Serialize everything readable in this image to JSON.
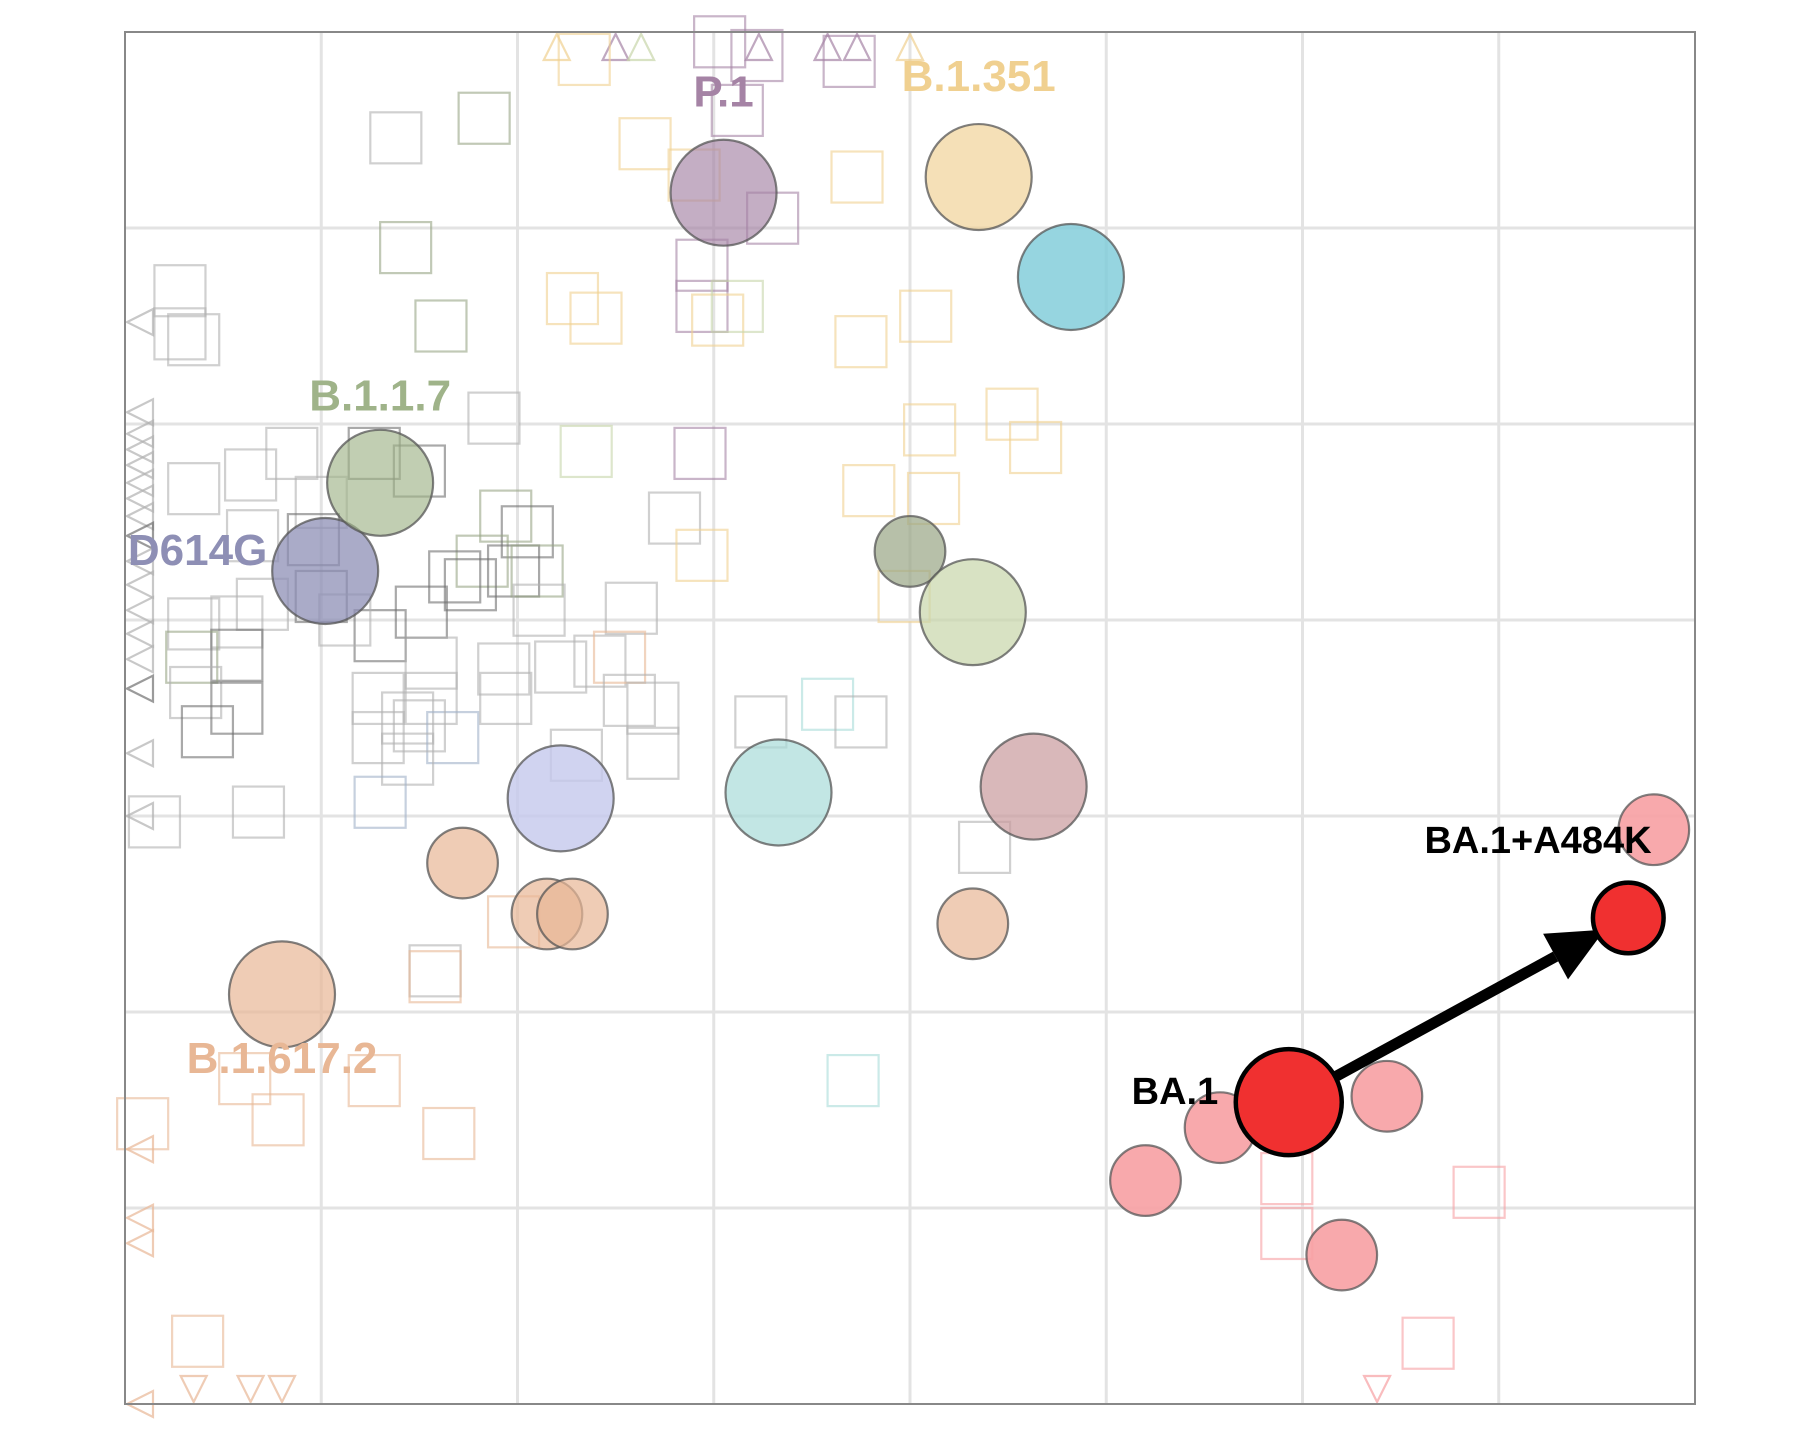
{
  "chart_data": {
    "type": "scatter",
    "title": "",
    "xlabel": "",
    "ylabel": "",
    "xlim": [
      0,
      8
    ],
    "ylim": [
      0,
      7
    ],
    "grid": true,
    "legend": "none",
    "colors": {
      "D614G": "#8e8fb5",
      "B.1.1.7": "#9fb389",
      "P.1": "#a583a5",
      "B.1.351": "#f0d090",
      "B.1.617.2": "#e8b795",
      "BA.1": "#f03030",
      "BA.1_related": "#f7a0a3",
      "other_teal": "#7ccbd8",
      "other_cyan": "#a8dcd8",
      "other_lavender": "#c4c8ec",
      "other_rose": "#c99a9d",
      "other_olive": "#c7d6aa",
      "other_darkolive": "#98a585",
      "grey": "#b0b0b0"
    },
    "variant_labels": [
      {
        "text": "D614G",
        "x": 0.37,
        "y": 4.28,
        "color": "#8e8fb5"
      },
      {
        "text": "B.1.1.7",
        "x": 1.3,
        "y": 5.07,
        "color": "#9fb389"
      },
      {
        "text": "P.1",
        "x": 3.05,
        "y": 6.62,
        "color": "#a583a5"
      },
      {
        "text": "B.1.351",
        "x": 4.35,
        "y": 6.7,
        "color": "#f0d090"
      },
      {
        "text": "B.1.617.2",
        "x": 0.8,
        "y": 1.69,
        "color": "#e8b795"
      }
    ],
    "focus_labels": [
      {
        "text": "BA.1",
        "x": 5.35,
        "y": 1.53
      },
      {
        "text": "BA.1+A484K",
        "x": 7.2,
        "y": 2.81
      }
    ],
    "arrow": {
      "from": [
        5.93,
        1.54
      ],
      "to": [
        7.54,
        2.42
      ]
    },
    "antigens": [
      {
        "x": 1.02,
        "y": 4.25,
        "r": 0.27,
        "color": "#8e8fb5",
        "opacity": 0.75
      },
      {
        "x": 1.3,
        "y": 4.7,
        "r": 0.27,
        "color": "#9fb389",
        "opacity": 0.65
      },
      {
        "x": 3.05,
        "y": 6.18,
        "r": 0.27,
        "color": "#a583a5",
        "opacity": 0.65
      },
      {
        "x": 4.35,
        "y": 6.26,
        "r": 0.27,
        "color": "#f0d090",
        "opacity": 0.65
      },
      {
        "x": 4.82,
        "y": 5.75,
        "r": 0.27,
        "color": "#7ccbd8",
        "opacity": 0.8
      },
      {
        "x": 4.0,
        "y": 4.35,
        "r": 0.18,
        "color": "#98a585",
        "opacity": 0.7
      },
      {
        "x": 4.32,
        "y": 4.04,
        "r": 0.27,
        "color": "#c7d6aa",
        "opacity": 0.7
      },
      {
        "x": 2.22,
        "y": 3.09,
        "r": 0.27,
        "color": "#c4c8ec",
        "opacity": 0.8
      },
      {
        "x": 3.33,
        "y": 3.12,
        "r": 0.27,
        "color": "#a8dcd8",
        "opacity": 0.7
      },
      {
        "x": 4.63,
        "y": 3.15,
        "r": 0.27,
        "color": "#c99a9d",
        "opacity": 0.7
      },
      {
        "x": 1.72,
        "y": 2.76,
        "r": 0.18,
        "color": "#e8b795",
        "opacity": 0.7
      },
      {
        "x": 2.15,
        "y": 2.5,
        "r": 0.18,
        "color": "#e8b795",
        "opacity": 0.7
      },
      {
        "x": 2.28,
        "y": 2.5,
        "r": 0.18,
        "color": "#e8b795",
        "opacity": 0.7
      },
      {
        "x": 4.32,
        "y": 2.45,
        "r": 0.18,
        "color": "#e8b795",
        "opacity": 0.7
      },
      {
        "x": 0.8,
        "y": 2.09,
        "r": 0.27,
        "color": "#e8b795",
        "opacity": 0.7
      },
      {
        "x": 7.79,
        "y": 2.93,
        "r": 0.18,
        "color": "#f7a0a3",
        "opacity": 0.9
      },
      {
        "x": 6.43,
        "y": 1.57,
        "r": 0.18,
        "color": "#f7a0a3",
        "opacity": 0.9
      },
      {
        "x": 5.58,
        "y": 1.41,
        "r": 0.18,
        "color": "#f7a0a3",
        "opacity": 0.9
      },
      {
        "x": 5.2,
        "y": 1.14,
        "r": 0.18,
        "color": "#f7a0a3",
        "opacity": 0.9
      },
      {
        "x": 6.2,
        "y": 0.76,
        "r": 0.18,
        "color": "#f7a0a3",
        "opacity": 0.9
      }
    ],
    "focus_antigens": [
      {
        "x": 5.93,
        "y": 1.54,
        "r": 0.27,
        "color": "#f03030"
      },
      {
        "x": 7.66,
        "y": 2.48,
        "r": 0.18,
        "color": "#f03030"
      }
    ],
    "sera": [
      {
        "x": 1.38,
        "y": 6.46,
        "color": "#b0b0b0"
      },
      {
        "x": 1.83,
        "y": 6.56,
        "color": "#98a585"
      },
      {
        "x": 1.43,
        "y": 5.9,
        "color": "#98a585"
      },
      {
        "x": 1.61,
        "y": 5.5,
        "color": "#98a585"
      },
      {
        "x": 0.28,
        "y": 5.68,
        "color": "#b0b0b0"
      },
      {
        "x": 0.35,
        "y": 5.43,
        "color": "#b0b0b0"
      },
      {
        "x": 2.34,
        "y": 6.86,
        "color": "#f0d090"
      },
      {
        "x": 3.03,
        "y": 6.95,
        "color": "#a583a5"
      },
      {
        "x": 3.22,
        "y": 6.88,
        "color": "#a583a5"
      },
      {
        "x": 3.69,
        "y": 6.85,
        "color": "#a583a5"
      },
      {
        "x": 3.12,
        "y": 6.6,
        "color": "#a583a5"
      },
      {
        "x": 2.65,
        "y": 6.43,
        "color": "#f0d090"
      },
      {
        "x": 2.9,
        "y": 6.27,
        "color": "#f0d090"
      },
      {
        "x": 3.3,
        "y": 6.05,
        "color": "#a583a5"
      },
      {
        "x": 3.73,
        "y": 6.26,
        "color": "#f0d090"
      },
      {
        "x": 2.94,
        "y": 5.81,
        "color": "#a583a5"
      },
      {
        "x": 2.94,
        "y": 5.6,
        "color": "#a583a5"
      },
      {
        "x": 3.02,
        "y": 5.53,
        "color": "#f0d090"
      },
      {
        "x": 3.12,
        "y": 5.6,
        "color": "#c7d6aa"
      },
      {
        "x": 2.28,
        "y": 5.64,
        "color": "#f0d090"
      },
      {
        "x": 2.4,
        "y": 5.54,
        "color": "#f0d090"
      },
      {
        "x": 3.75,
        "y": 5.42,
        "color": "#f0d090"
      },
      {
        "x": 4.08,
        "y": 5.55,
        "color": "#f0d090"
      },
      {
        "x": 4.1,
        "y": 4.97,
        "color": "#f0d090"
      },
      {
        "x": 4.52,
        "y": 5.05,
        "color": "#f0d090"
      },
      {
        "x": 4.64,
        "y": 4.88,
        "color": "#f0d090"
      },
      {
        "x": 3.79,
        "y": 4.66,
        "color": "#f0d090"
      },
      {
        "x": 4.12,
        "y": 4.62,
        "color": "#f0d090"
      },
      {
        "x": 3.97,
        "y": 4.12,
        "color": "#f0d090"
      },
      {
        "x": 2.93,
        "y": 4.85,
        "color": "#a583a5"
      },
      {
        "x": 2.35,
        "y": 4.86,
        "color": "#c7d6aa"
      },
      {
        "x": 2.8,
        "y": 4.52,
        "color": "#b0b0b0"
      },
      {
        "x": 2.94,
        "y": 4.33,
        "color": "#f0d090"
      },
      {
        "x": 0.85,
        "y": 4.85,
        "color": "#b0b0b0"
      },
      {
        "x": 1.27,
        "y": 4.85,
        "color": "#707070"
      },
      {
        "x": 1.5,
        "y": 4.76,
        "color": "#707070"
      },
      {
        "x": 1.88,
        "y": 5.03,
        "color": "#b0b0b0"
      },
      {
        "x": 0.35,
        "y": 4.67,
        "color": "#b0b0b0"
      },
      {
        "x": 0.64,
        "y": 4.74,
        "color": "#b0b0b0"
      },
      {
        "x": 1.0,
        "y": 4.6,
        "color": "#b0b0b0"
      },
      {
        "x": 0.65,
        "y": 4.43,
        "color": "#b0b0b0"
      },
      {
        "x": 0.96,
        "y": 4.41,
        "color": "#707070"
      },
      {
        "x": 1.94,
        "y": 4.53,
        "color": "#98a585"
      },
      {
        "x": 2.05,
        "y": 4.45,
        "color": "#707070"
      },
      {
        "x": 1.82,
        "y": 4.3,
        "color": "#98a585"
      },
      {
        "x": 1.98,
        "y": 4.25,
        "color": "#707070"
      },
      {
        "x": 2.1,
        "y": 4.25,
        "color": "#98a585"
      },
      {
        "x": 1.68,
        "y": 4.22,
        "color": "#707070"
      },
      {
        "x": 1.76,
        "y": 4.18,
        "color": "#707070"
      },
      {
        "x": 1.51,
        "y": 4.04,
        "color": "#707070"
      },
      {
        "x": 1.3,
        "y": 3.92,
        "color": "#707070"
      },
      {
        "x": 1.0,
        "y": 4.12,
        "color": "#707070"
      },
      {
        "x": 1.12,
        "y": 4.0,
        "color": "#b0b0b0"
      },
      {
        "x": 0.7,
        "y": 4.08,
        "color": "#b0b0b0"
      },
      {
        "x": 0.57,
        "y": 3.99,
        "color": "#b0b0b0"
      },
      {
        "x": 0.35,
        "y": 3.98,
        "color": "#b0b0b0"
      },
      {
        "x": 0.57,
        "y": 3.82,
        "color": "#707070"
      },
      {
        "x": 0.34,
        "y": 3.81,
        "color": "#98a585"
      },
      {
        "x": 0.36,
        "y": 3.63,
        "color": "#b0b0b0"
      },
      {
        "x": 0.57,
        "y": 3.55,
        "color": "#707070"
      },
      {
        "x": 0.42,
        "y": 3.43,
        "color": "#707070"
      },
      {
        "x": 1.56,
        "y": 3.6,
        "color": "#b0b0b0"
      },
      {
        "x": 1.29,
        "y": 3.6,
        "color": "#b0b0b0"
      },
      {
        "x": 1.44,
        "y": 3.5,
        "color": "#b0b0b0"
      },
      {
        "x": 1.56,
        "y": 3.78,
        "color": "#b0b0b0"
      },
      {
        "x": 1.67,
        "y": 3.4,
        "color": "#a0b0c8"
      },
      {
        "x": 1.5,
        "y": 3.46,
        "color": "#b0b0b0"
      },
      {
        "x": 1.29,
        "y": 3.4,
        "color": "#b0b0b0"
      },
      {
        "x": 1.44,
        "y": 3.29,
        "color": "#b0b0b0"
      },
      {
        "x": 1.3,
        "y": 3.07,
        "color": "#a0b0c8"
      },
      {
        "x": 1.93,
        "y": 3.75,
        "color": "#b0b0b0"
      },
      {
        "x": 1.94,
        "y": 3.6,
        "color": "#b0b0b0"
      },
      {
        "x": 2.11,
        "y": 4.05,
        "color": "#b0b0b0"
      },
      {
        "x": 2.22,
        "y": 3.76,
        "color": "#b0b0b0"
      },
      {
        "x": 2.58,
        "y": 4.06,
        "color": "#b0b0b0"
      },
      {
        "x": 2.42,
        "y": 3.79,
        "color": "#b0b0b0"
      },
      {
        "x": 2.52,
        "y": 3.81,
        "color": "#e8b795"
      },
      {
        "x": 2.57,
        "y": 3.59,
        "color": "#b0b0b0"
      },
      {
        "x": 2.69,
        "y": 3.55,
        "color": "#b0b0b0"
      },
      {
        "x": 2.3,
        "y": 3.31,
        "color": "#b0b0b0"
      },
      {
        "x": 2.69,
        "y": 3.32,
        "color": "#b0b0b0"
      },
      {
        "x": 3.24,
        "y": 3.48,
        "color": "#b0b0b0"
      },
      {
        "x": 3.58,
        "y": 3.57,
        "color": "#a8dcd8"
      },
      {
        "x": 3.75,
        "y": 3.48,
        "color": "#b0b0b0"
      },
      {
        "x": 0.15,
        "y": 2.97,
        "color": "#b0b0b0"
      },
      {
        "x": 0.68,
        "y": 3.02,
        "color": "#b0b0b0"
      },
      {
        "x": 4.38,
        "y": 2.84,
        "color": "#b0b0b0"
      },
      {
        "x": 1.98,
        "y": 2.46,
        "color": "#e8b795"
      },
      {
        "x": 1.58,
        "y": 2.21,
        "color": "#b0b0b0"
      },
      {
        "x": 1.58,
        "y": 2.18,
        "color": "#e8b795"
      },
      {
        "x": 0.61,
        "y": 1.66,
        "color": "#e8b795"
      },
      {
        "x": 1.27,
        "y": 1.65,
        "color": "#e8b795"
      },
      {
        "x": 0.78,
        "y": 1.45,
        "color": "#e8b795"
      },
      {
        "x": 1.65,
        "y": 1.38,
        "color": "#e8b795"
      },
      {
        "x": 0.09,
        "y": 1.43,
        "color": "#e8b795"
      },
      {
        "x": 3.71,
        "y": 1.65,
        "color": "#a8dcd8"
      },
      {
        "x": 0.37,
        "y": 0.32,
        "color": "#e8b795"
      },
      {
        "x": 5.92,
        "y": 1.15,
        "color": "#f7a0a3"
      },
      {
        "x": 6.9,
        "y": 1.08,
        "color": "#f7a0a3"
      },
      {
        "x": 5.92,
        "y": 0.87,
        "color": "#f7a0a3"
      },
      {
        "x": 6.64,
        "y": 0.31,
        "color": "#f7a0a3"
      },
      {
        "x": 0.28,
        "y": 5.46,
        "color": "#b0b0b0"
      }
    ],
    "markers_left": [
      {
        "y": 5.52,
        "color": "#b0b0b0"
      },
      {
        "y": 5.06,
        "color": "#b0b0b0"
      },
      {
        "y": 4.95,
        "color": "#b0b0b0"
      },
      {
        "y": 4.87,
        "color": "#b0b0b0"
      },
      {
        "y": 4.79,
        "color": "#b0b0b0"
      },
      {
        "y": 4.7,
        "color": "#b0b0b0"
      },
      {
        "y": 4.62,
        "color": "#b0b0b0"
      },
      {
        "y": 4.53,
        "color": "#b0b0b0"
      },
      {
        "y": 4.43,
        "color": "#707070"
      },
      {
        "y": 4.3,
        "color": "#b0b0b0"
      },
      {
        "y": 4.18,
        "color": "#b0b0b0"
      },
      {
        "y": 4.05,
        "color": "#b0b0b0"
      },
      {
        "y": 3.93,
        "color": "#b0b0b0"
      },
      {
        "y": 3.8,
        "color": "#b0b0b0"
      },
      {
        "y": 3.65,
        "color": "#707070"
      },
      {
        "y": 3.32,
        "color": "#b0b0b0"
      },
      {
        "y": 3.0,
        "color": "#b0b0b0"
      },
      {
        "y": 1.3,
        "color": "#e8b795"
      },
      {
        "y": 0.95,
        "color": "#e8b795"
      },
      {
        "y": 0.82,
        "color": "#e8b795"
      },
      {
        "y": 0.0,
        "color": "#e8b795"
      }
    ],
    "markers_top": [
      {
        "x": 2.2,
        "color": "#f0d090"
      },
      {
        "x": 2.5,
        "color": "#a583a5"
      },
      {
        "x": 2.63,
        "color": "#c7d6aa"
      },
      {
        "x": 3.23,
        "color": "#a583a5"
      },
      {
        "x": 3.58,
        "color": "#a583a5"
      },
      {
        "x": 3.73,
        "color": "#a583a5"
      },
      {
        "x": 4.0,
        "color": "#f0d090"
      }
    ],
    "markers_bottom": [
      {
        "x": 0.35,
        "color": "#e8b795"
      },
      {
        "x": 0.64,
        "color": "#e8b795"
      },
      {
        "x": 0.8,
        "color": "#e8b795"
      },
      {
        "x": 6.38,
        "color": "#f7a0a3"
      }
    ]
  }
}
